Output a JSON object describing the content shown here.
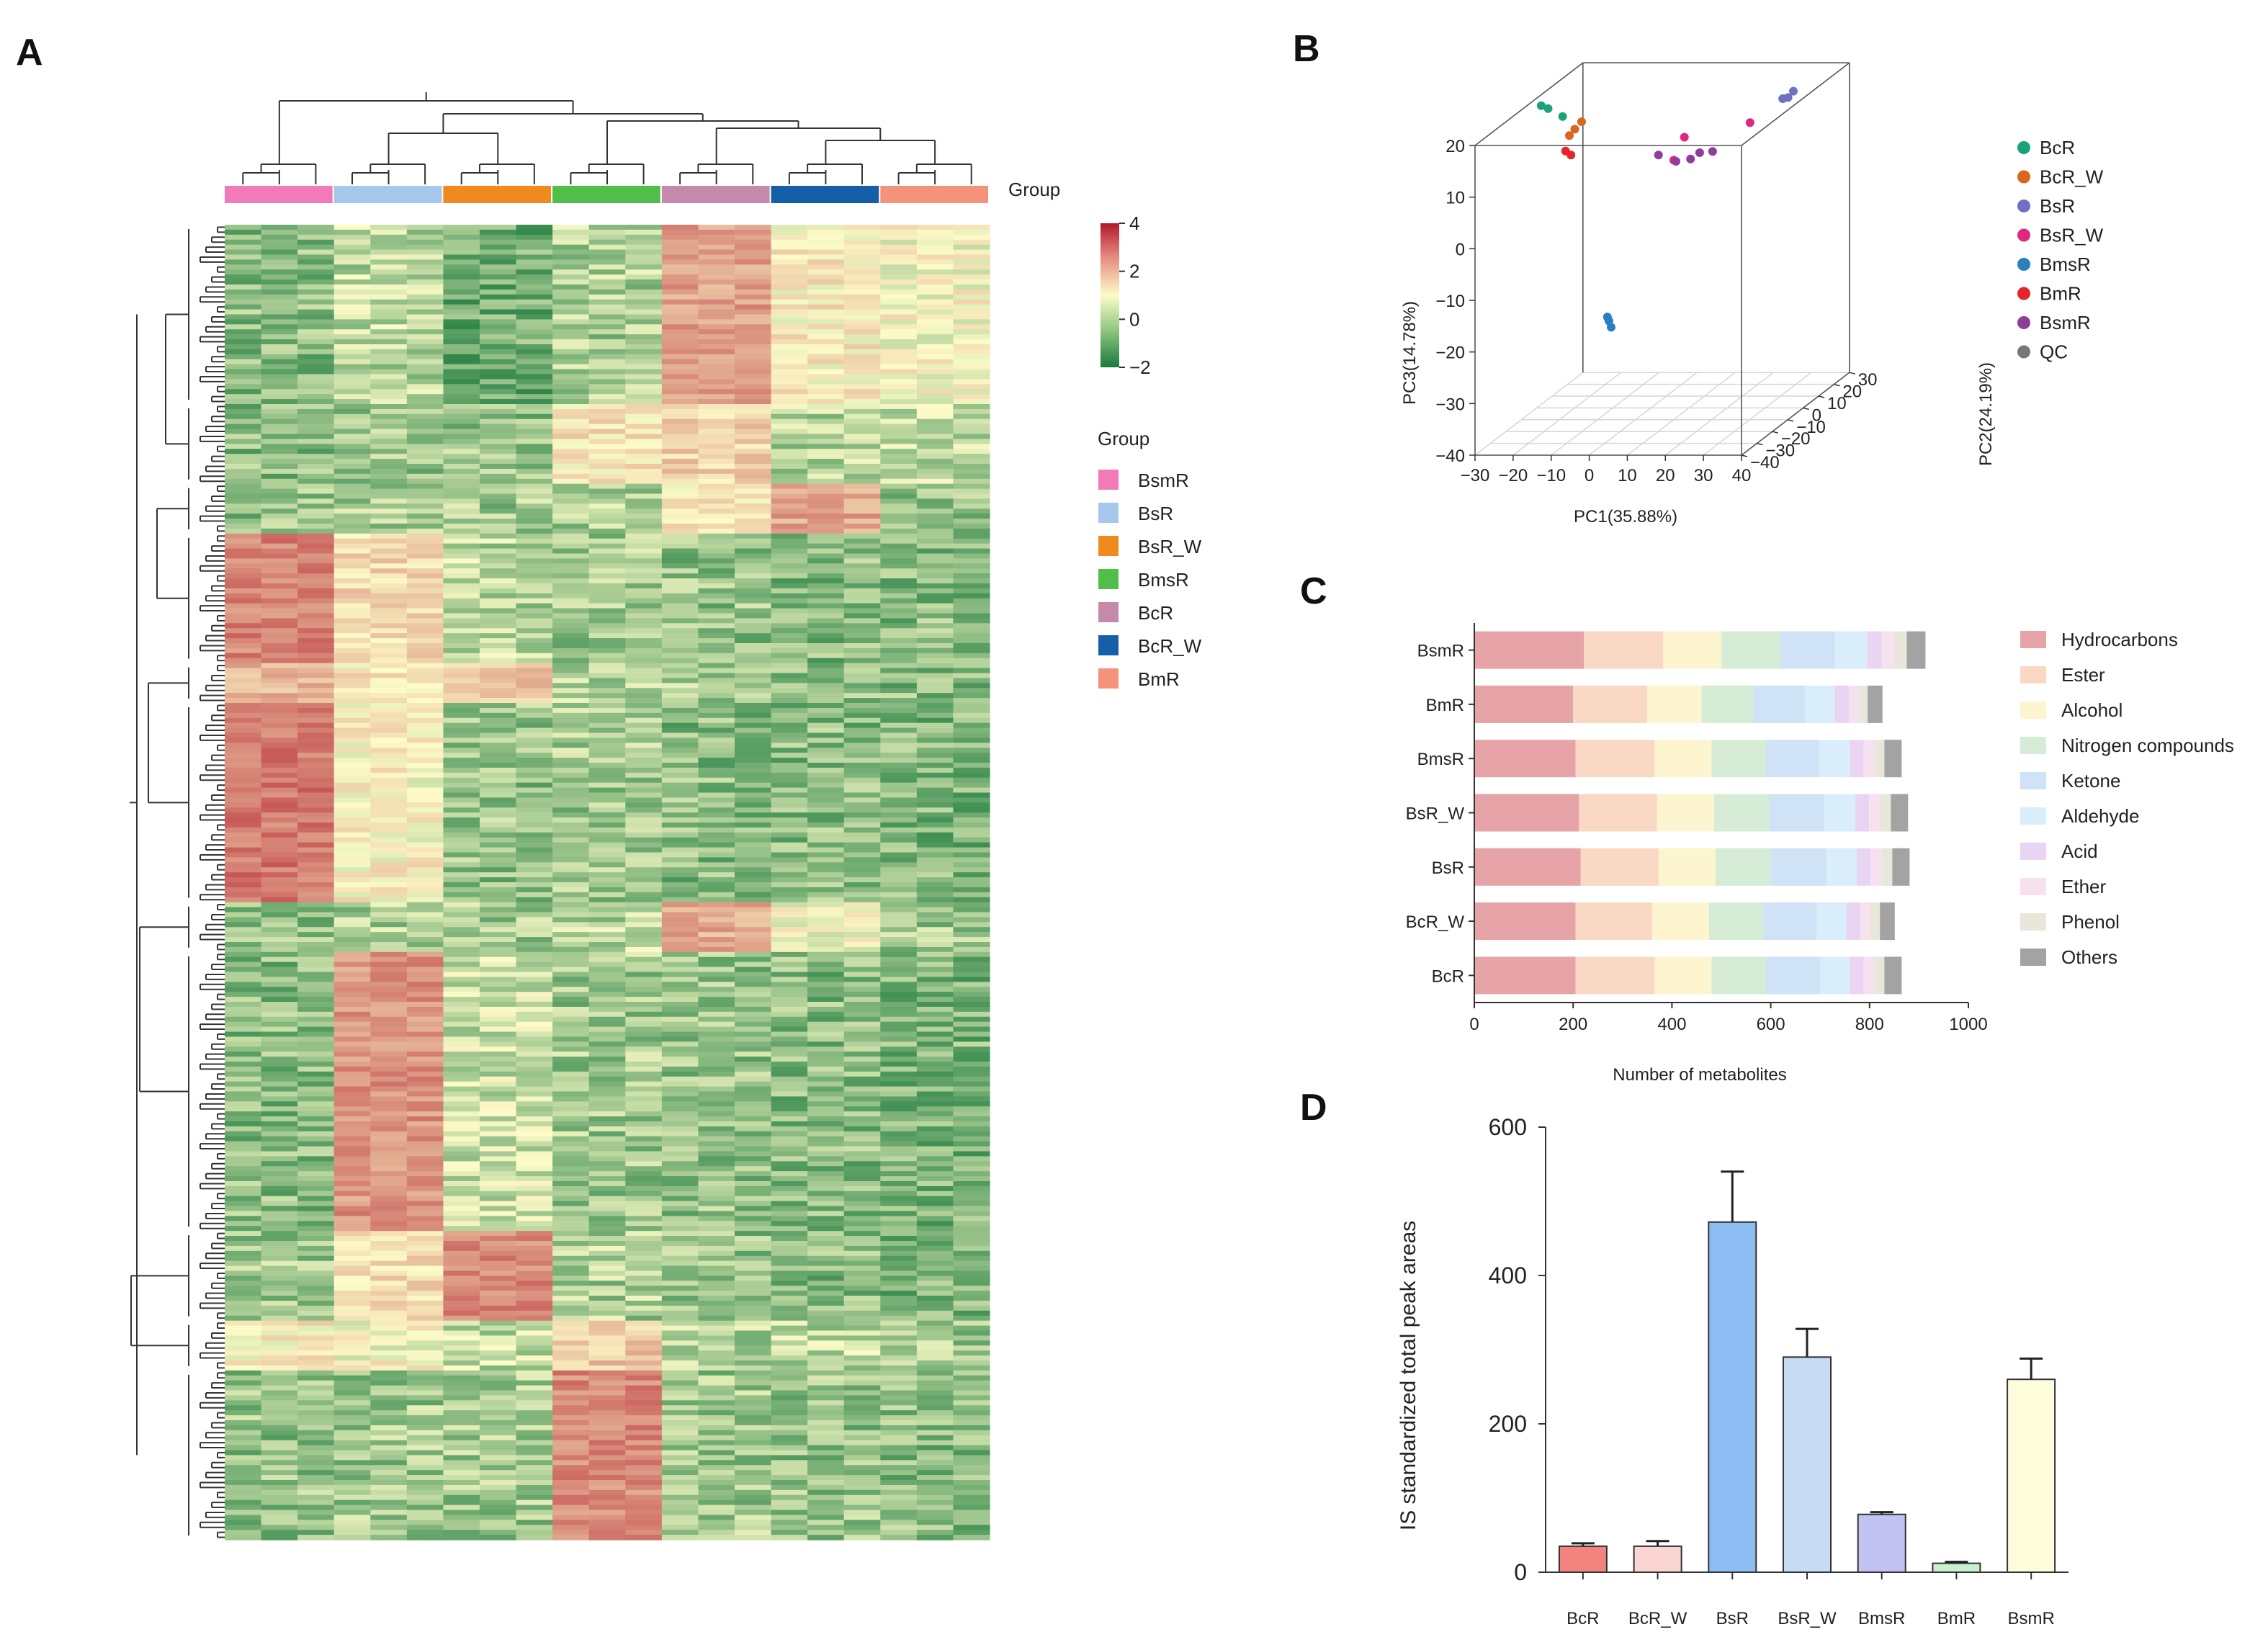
{
  "panels": {
    "a": {
      "label": "A"
    },
    "b": {
      "label": "B"
    },
    "c": {
      "label": "C"
    },
    "d": {
      "label": "D"
    }
  },
  "chart_data": [
    {
      "type": "heatmap",
      "panel": "A",
      "group_label": "Group",
      "groups": [
        {
          "name": "BsmR",
          "color": "#f27ab8"
        },
        {
          "name": "BsR",
          "color": "#a5c8ec"
        },
        {
          "name": "BsR_W",
          "color": "#f08a1e"
        },
        {
          "name": "BmsR",
          "color": "#4fbf4a"
        },
        {
          "name": "BcR",
          "color": "#c58aab"
        },
        {
          "name": "BcR_W",
          "color": "#155fa8"
        },
        {
          "name": "BmR",
          "color": "#f4937a"
        }
      ],
      "colorbar": {
        "min": -2,
        "max": 4,
        "ticks": [
          "4",
          "2",
          "0",
          "−2"
        ],
        "low_color": "#1a7a3c",
        "mid_color": "#fdfcc8",
        "high_color": "#b2182b"
      },
      "legend_title": "Group",
      "row_blocks": [
        {
          "rows": 36,
          "means": [
            -1.0,
            -0.6,
            -1.2,
            -0.7,
            1.6,
            0.3,
            0.1
          ]
        },
        {
          "rows": 16,
          "means": [
            -1.0,
            -0.8,
            -0.9,
            0.4,
            0.7,
            -0.6,
            -0.5
          ]
        },
        {
          "rows": 10,
          "means": [
            -0.9,
            -0.8,
            -0.8,
            -0.7,
            0.4,
            1.5,
            -0.8
          ]
        },
        {
          "rows": 26,
          "means": [
            2.1,
            0.6,
            -0.6,
            -0.8,
            -0.9,
            -1.0,
            -1.0
          ]
        },
        {
          "rows": 8,
          "means": [
            1.3,
            0.4,
            0.9,
            -0.6,
            -0.8,
            -0.9,
            -1.0
          ]
        },
        {
          "rows": 40,
          "means": [
            2.3,
            0.2,
            -0.9,
            -0.8,
            -1.0,
            -1.0,
            -1.1
          ]
        },
        {
          "rows": 10,
          "means": [
            -0.9,
            -0.7,
            -0.8,
            -0.6,
            1.4,
            0.1,
            -0.8
          ]
        },
        {
          "rows": 56,
          "means": [
            -1.0,
            1.8,
            -0.4,
            -0.8,
            -0.9,
            -1.0,
            -1.1
          ]
        },
        {
          "rows": 18,
          "means": [
            -0.8,
            0.5,
            2.0,
            -0.7,
            -0.9,
            -1.0,
            -1.1
          ]
        },
        {
          "rows": 10,
          "means": [
            0.3,
            0.1,
            -0.5,
            0.9,
            -0.7,
            -0.6,
            -0.8
          ]
        },
        {
          "rows": 34,
          "means": [
            -0.9,
            -0.8,
            -0.8,
            2.0,
            -0.8,
            -0.9,
            -1.0
          ]
        }
      ]
    },
    {
      "type": "scatter",
      "panel": "B",
      "xlabel": "PC1(35.88%)",
      "ylabel": "PC2(24.19%)",
      "zlabel": "PC3(14.78%)",
      "xlim": [
        -30,
        40
      ],
      "ylim": [
        -40,
        30
      ],
      "zlim": [
        -40,
        20
      ],
      "xticks": [
        "−30",
        "−20",
        "−10",
        "0",
        "10",
        "20",
        "30",
        "40"
      ],
      "yticks": [
        "−40",
        "−30",
        "−20",
        "−10",
        "0",
        "10",
        "20",
        "30"
      ],
      "zticks": [
        "20",
        "10",
        "0",
        "−10",
        "−20",
        "−30",
        "−40"
      ],
      "series": [
        {
          "name": "BcR",
          "color": "#1aa37a",
          "points": [
            [
              -28,
              -2,
              19
            ],
            [
              -27,
              0,
              18
            ],
            [
              -24,
              2,
              16
            ]
          ]
        },
        {
          "name": "BcR_W",
          "color": "#d9661c",
          "points": [
            [
              -20,
              0,
              14
            ],
            [
              -19,
              2,
              15
            ],
            [
              -21,
              -1,
              13
            ]
          ]
        },
        {
          "name": "BsR",
          "color": "#6f6fc4",
          "points": [
            [
              33,
              4,
              19
            ],
            [
              34,
              5,
              19
            ],
            [
              35,
              6,
              20
            ]
          ]
        },
        {
          "name": "BsR_W",
          "color": "#e0287f",
          "points": [
            [
              22,
              10,
              13
            ],
            [
              8,
              2,
              12
            ],
            [
              6,
              0,
              8
            ]
          ]
        },
        {
          "name": "BmsR",
          "color": "#2a7fc0",
          "points": [
            [
              -9,
              -6,
              -21
            ],
            [
              -9,
              -5,
              -22
            ],
            [
              -8,
              -6,
              -23
            ]
          ]
        },
        {
          "name": "BmR",
          "color": "#e3242b",
          "points": [
            [
              -22,
              -1,
              10
            ],
            [
              -21,
              0,
              9
            ]
          ]
        },
        {
          "name": "BsmR",
          "color": "#8f3d9a",
          "points": [
            [
              2,
              0,
              9
            ],
            [
              7,
              -1,
              8
            ],
            [
              10,
              1,
              8
            ],
            [
              12,
              2,
              9
            ],
            [
              15,
              3,
              9
            ]
          ]
        },
        {
          "name": "QC",
          "color": "#777777",
          "points": []
        }
      ]
    },
    {
      "type": "bar",
      "panel": "C",
      "stacked": true,
      "orientation": "horizontal",
      "xlabel": "Number of metabolites",
      "xlim": [
        0,
        1000
      ],
      "xticks": [
        "0",
        "200",
        "400",
        "600",
        "800",
        "1000"
      ],
      "categories": [
        "BsmR",
        "BmR",
        "BmsR",
        "BsR_W",
        "BsR",
        "BcR_W",
        "BcR"
      ],
      "series": [
        {
          "name": "Hydrocarbons",
          "color": "#e6a4a8",
          "values": [
            222,
            200,
            205,
            212,
            215,
            205,
            205
          ]
        },
        {
          "name": "Ester",
          "color": "#fad9c4",
          "values": [
            160,
            150,
            160,
            158,
            158,
            155,
            160
          ]
        },
        {
          "name": "Alcohol",
          "color": "#fdf5cf",
          "values": [
            118,
            110,
            115,
            115,
            115,
            115,
            115
          ]
        },
        {
          "name": "Nitrogen compounds",
          "color": "#d6ecd6",
          "values": [
            120,
            105,
            110,
            112,
            112,
            110,
            110
          ]
        },
        {
          "name": "Ketone",
          "color": "#cfe2f6",
          "values": [
            110,
            105,
            108,
            112,
            112,
            108,
            110
          ]
        },
        {
          "name": "Aldehyde",
          "color": "#d9eefa",
          "values": [
            65,
            60,
            62,
            62,
            62,
            60,
            60
          ]
        },
        {
          "name": "Acid",
          "color": "#e9d5f3",
          "values": [
            30,
            28,
            28,
            28,
            28,
            28,
            28
          ]
        },
        {
          "name": "Ether",
          "color": "#f8e1ef",
          "values": [
            25,
            20,
            22,
            22,
            22,
            20,
            22
          ]
        },
        {
          "name": "Phenol",
          "color": "#e8e7da",
          "values": [
            25,
            18,
            20,
            22,
            22,
            20,
            20
          ]
        },
        {
          "name": "Others",
          "color": "#a3a3a3",
          "values": [
            38,
            30,
            35,
            35,
            35,
            30,
            35
          ]
        }
      ]
    },
    {
      "type": "bar",
      "panel": "D",
      "ylabel": "IS standardized total peak areas",
      "ylim": [
        0,
        600
      ],
      "yticks": [
        "0",
        "200",
        "400",
        "600"
      ],
      "categories": [
        "BcR",
        "BcR_W",
        "BsR",
        "BsR_W",
        "BmsR",
        "BmR",
        "BsmR"
      ],
      "values": [
        35,
        35,
        472,
        290,
        78,
        12,
        260
      ],
      "errors": [
        4,
        7,
        68,
        38,
        3,
        2,
        28
      ],
      "colors": [
        "#f2837f",
        "#fbd5d2",
        "#8dbcf2",
        "#c7dbf5",
        "#c3c3f3",
        "#c9f0cf",
        "#fdfddc"
      ]
    }
  ]
}
